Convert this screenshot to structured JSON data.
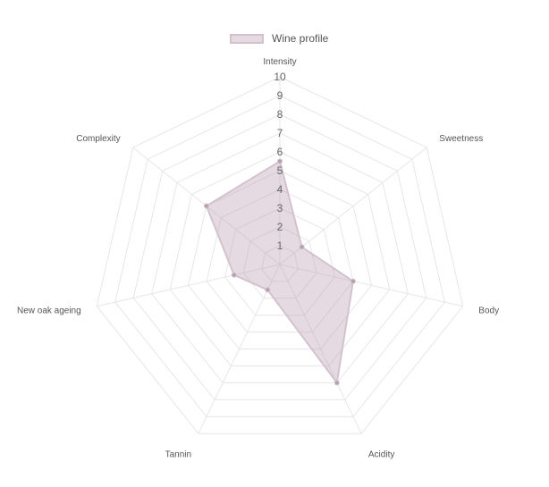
{
  "chart_data": {
    "type": "radar",
    "axes": [
      "Intensity",
      "Sweetness",
      "Body",
      "Acidity",
      "Tannin",
      "New oak ageing",
      "Complexity"
    ],
    "r_ticks": [
      1,
      2,
      3,
      4,
      5,
      6,
      7,
      8,
      9,
      10
    ],
    "r_range": [
      0,
      10
    ],
    "series": [
      {
        "name": "Wine profile",
        "values": [
          5.5,
          1.5,
          4.0,
          7.0,
          1.5,
          2.5,
          5.0
        ]
      }
    ],
    "legend_position": "top",
    "grid": true,
    "colors": {
      "fill": "rgba(180, 150, 170, 0.35)",
      "border": "#d3c2ce",
      "point": "#b4a1b0",
      "grid": "#e6e6e6"
    }
  }
}
